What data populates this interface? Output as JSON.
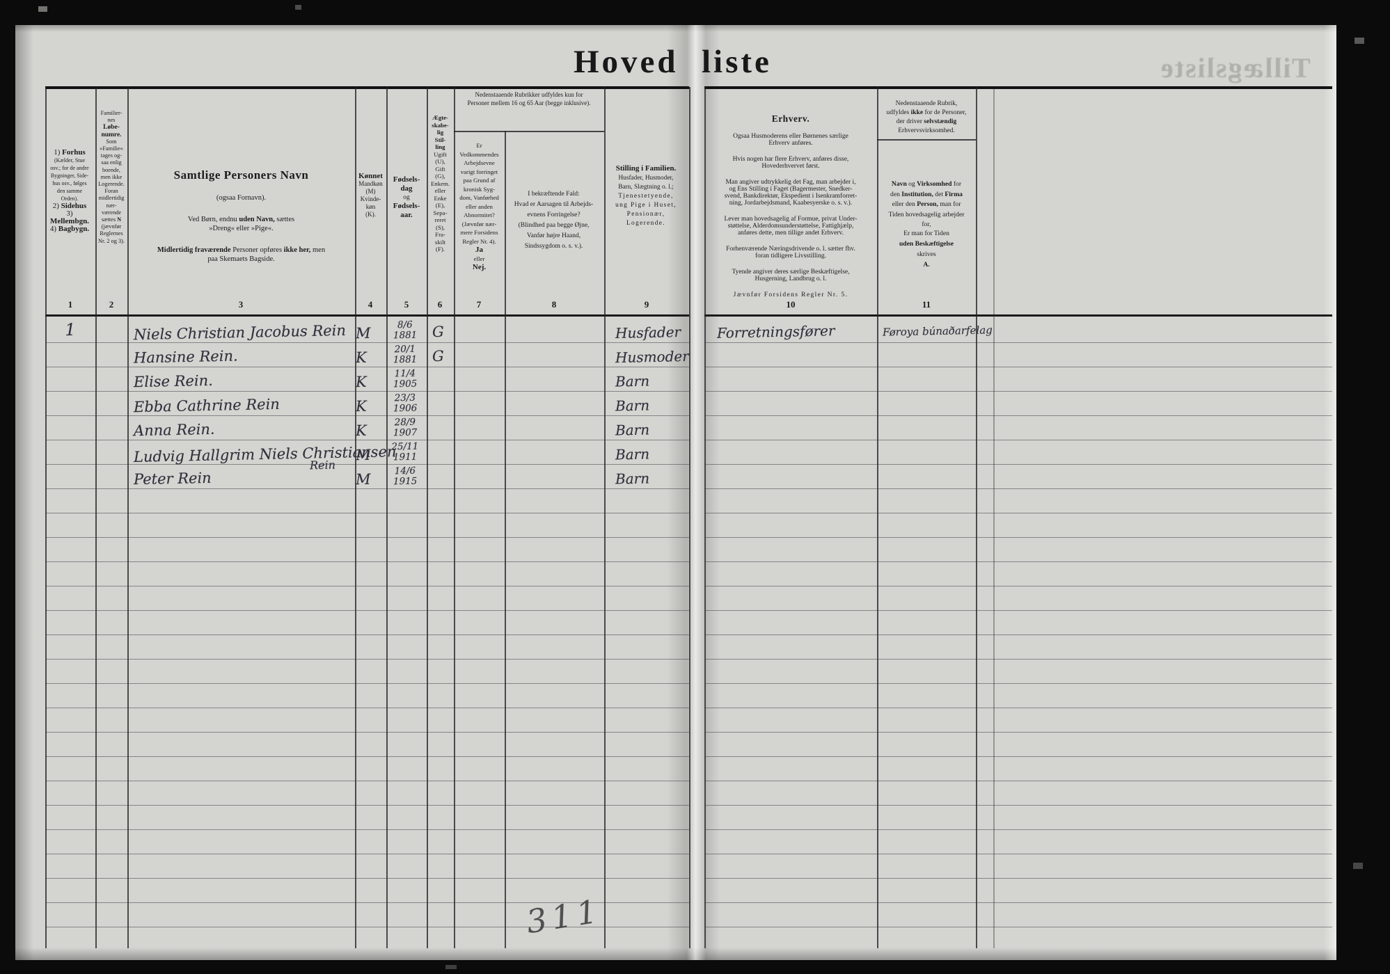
{
  "title": {
    "left": "Hoved",
    "right": "liste"
  },
  "bleed_through_title": "Tillægsliste",
  "pencil_note": "311",
  "column_numbers": [
    "1",
    "2",
    "3",
    "4",
    "5",
    "6",
    "7",
    "8",
    "9",
    "10",
    "11"
  ],
  "header": {
    "col1": {
      "runs": [
        {
          "t": "1) ",
          "c": "big"
        },
        {
          "t": "Forhus",
          "c": "big b"
        },
        {
          "t": "\n(Kælder, Stue\nosv.; for de andre\nBygninger, Side-\nhus osv., følges\nden samme\nOrden).\n"
        },
        {
          "t": "2) ",
          "c": "big"
        },
        {
          "t": "Sidehus",
          "c": "big b"
        },
        {
          "t": "\n"
        },
        {
          "t": "3) ",
          "c": "big"
        },
        {
          "t": "Mellembgn.",
          "c": "big b"
        },
        {
          "t": "\n"
        },
        {
          "t": "4) ",
          "c": "big"
        },
        {
          "t": "Bagbygn.",
          "c": "big b"
        }
      ]
    },
    "col2": {
      "runs": [
        {
          "t": "Familier-\nnes\n"
        },
        {
          "t": "Løbe-\nnumre.",
          "c": "b big2"
        },
        {
          "t": "\nSom\n»Familie«\ntages og-\nsaa enlig\nboende,\nmen ikke\nLogerende.\nForan\nmidlertidig\nnær-\nværende\nsættes "
        },
        {
          "t": "N",
          "c": "b"
        },
        {
          "t": "\n(jævnfør\nReglernes\nNr. 2 og 3)."
        }
      ]
    },
    "col3": {
      "title": "Samtlige Personers Navn",
      "sub1": "(ogsaa Fornavn).",
      "sub2_runs": [
        {
          "t": "Ved Børn, endnu "
        },
        {
          "t": "uden Navn,",
          "c": "b"
        },
        {
          "t": " sættes\n»Dreng« eller »Pige«."
        }
      ],
      "sub3_runs": [
        {
          "t": "Midlertidig fraværende",
          "c": "b"
        },
        {
          "t": " Personer opføres "
        },
        {
          "t": "ikke her,",
          "c": "b"
        },
        {
          "t": " men\npaa Skemaets Bagside."
        }
      ]
    },
    "col4": {
      "runs": [
        {
          "t": "Kønnet",
          "c": "b big"
        },
        {
          "t": "\nMandkøn\n(M)\nKvinde-\nkøn\n(K)."
        }
      ]
    },
    "col5": {
      "runs": [
        {
          "t": "Fødsels-\ndag",
          "c": "b big"
        },
        {
          "t": "\nog\n"
        },
        {
          "t": "Fødsels-\naar.",
          "c": "b big"
        }
      ]
    },
    "col6": {
      "runs": [
        {
          "t": "Ægte-\nskabe-\nlig\nStil-\nling",
          "c": "b"
        },
        {
          "t": "\nUgift\n(U),\nGift\n(G),\nEnkem.\neller\nEnke\n(E),\nSepa-\nreret\n(S),\nFra-\nskilt\n(F)."
        }
      ]
    },
    "banner_7_8": "Nedenstaaende Rubrikker udfyldes kun for\nPersoner mellem 16 og 65 Aar (begge inklusive).",
    "col7": {
      "runs": [
        {
          "t": "Er\nVedkommendes\nArbejdsevne\nvarigt forringet\npaa Grund af\nkronisk Syg-\ndom, Vanførhed\neller anden\nAbnormitet?\n(Jævnfør nær-\nmere Forsidens\nRegler Nr. 4).\n"
        },
        {
          "t": "Ja",
          "c": "b big"
        },
        {
          "t": "\neller\n"
        },
        {
          "t": "Nej.",
          "c": "b big"
        }
      ]
    },
    "col8": {
      "text": "I bekræftende Fald:\nHvad er Aarsagen til Arbejds-\nevnens Forringelse?\n(Blindhed paa begge Øjne,\nVanfør højre Haand,\nSindssygdom o. s. v.)."
    },
    "col9": {
      "runs": [
        {
          "t": "Stilling i Familien.",
          "c": "b big"
        },
        {
          "t": "\nHusfader, Husmoder,\nBarn, Slægtning o. l.;\n"
        },
        {
          "t": "Tjenestetyende,\nung Pige i Huset,\nPensionær,\nLogerende.",
          "c": "sp"
        }
      ]
    },
    "col10": {
      "title": "Erhverv.",
      "p1": "Ogsaa Husmoderens eller Børnenes særlige\nErhverv anføres.",
      "p2": "Hvis nogen har flere Erhverv, anføres disse,\nHovederhvervet først.",
      "p3": "Man angiver udtrykkelig det Fag, man arbejder i,\nog Ens Stilling i Faget (Bagermester, Snedker-\nsvend, Bankdirektør, Ekspedient i Isenkramforret-\nning, Jordarbejdsmand, Kaabesyerske o. s. v.).",
      "p4": "Lever man hovedsagelig af Formue, privat Under-\nstøttelse, Alderdomsunderstøttelse, Fattighjælp,\nanføres dette, men tillige andet Erhverv.",
      "p5": "Forhenværende Næringsdrivende o. l. sætter fhv.\nforan tidligere Livsstilling.",
      "p6": "Tyende angiver deres særlige Beskæftigelse,\nHusgerning, Landbrug o. l.",
      "p7": "Jævnfør Forsidens Regler Nr. 5."
    },
    "col11": {
      "banner_runs": [
        {
          "t": "Nedenstaaende Rubrik,\nudfyldes "
        },
        {
          "t": "ikke",
          "c": "b"
        },
        {
          "t": " for de Personer,\nder driver "
        },
        {
          "t": "selvstændig",
          "c": "b"
        },
        {
          "t": "\nErhvervsvirksomhed."
        }
      ],
      "body_runs": [
        {
          "t": "Navn",
          "c": "b"
        },
        {
          "t": " og "
        },
        {
          "t": "Virksomhed",
          "c": "b"
        },
        {
          "t": " for\nden "
        },
        {
          "t": "Institution,",
          "c": "b"
        },
        {
          "t": " det "
        },
        {
          "t": "Firma",
          "c": "b"
        },
        {
          "t": "\neller den "
        },
        {
          "t": "Person,",
          "c": "b"
        },
        {
          "t": " man for\nTiden hovedsagelig arbejder\nfor,"
        }
      ],
      "tail_runs": [
        {
          "t": "Er man for Tiden\n"
        },
        {
          "t": "uden Beskæftigelse",
          "c": "b"
        },
        {
          "t": "\nskrives\n"
        },
        {
          "t": "A.",
          "c": "b"
        }
      ]
    }
  },
  "rows": [
    {
      "no": "1",
      "name": "Niels Christian Jacobus Rein",
      "sex": "M",
      "bday": "8/6",
      "byear": "1881",
      "marital": "G",
      "family": "Husfader",
      "occupation": "Forretningsfører",
      "employer": "Føroya búnaðarfelag"
    },
    {
      "name": "Hansine Rein.",
      "sex": "K",
      "bday": "20/1",
      "byear": "1881",
      "marital": "G",
      "family": "Husmoder"
    },
    {
      "name": "Elise Rein.",
      "sex": "K",
      "bday": "11/4",
      "byear": "1905",
      "family": "Barn"
    },
    {
      "name": "Ebba Cathrine Rein",
      "sex": "K",
      "bday": "23/3",
      "byear": "1906",
      "family": "Barn"
    },
    {
      "name": "Anna Rein.",
      "sex": "K",
      "bday": "28/9",
      "byear": "1907",
      "family": "Barn"
    },
    {
      "name": "Ludvig Hallgrim Niels Christiansen",
      "name2": "Rein",
      "sex": "M",
      "bday": "25/11",
      "byear": "1911",
      "family": "Barn"
    },
    {
      "name": "Peter Rein",
      "sex": "M",
      "bday": "14/6",
      "byear": "1915",
      "family": "Barn"
    }
  ]
}
